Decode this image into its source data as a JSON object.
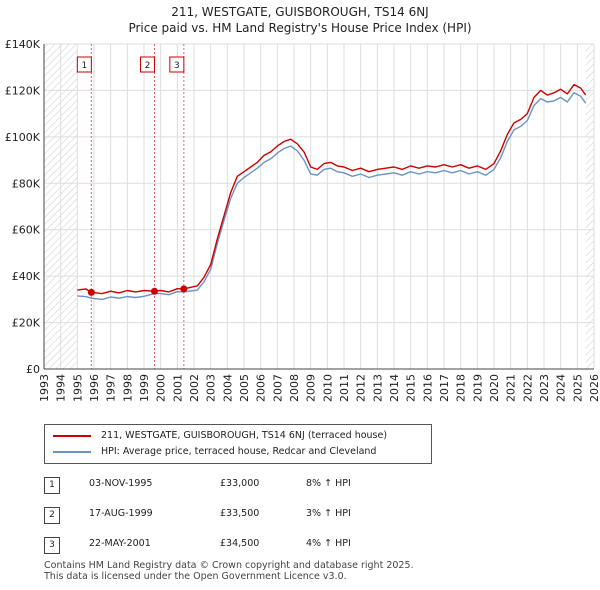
{
  "title_line1": "211, WESTGATE, GUISBOROUGH, TS14 6NJ",
  "title_line2": "Price paid vs. HM Land Registry's House Price Index (HPI)",
  "chart_data": {
    "type": "line",
    "title": "211, WESTGATE, GUISBOROUGH, TS14 6NJ — Price paid vs. HM Land Registry's House Price Index (HPI)",
    "xlabel": "",
    "ylabel": "",
    "xlim": [
      1993,
      2026
    ],
    "ylim": [
      0,
      140000
    ],
    "x_ticks": [
      1993,
      1994,
      1995,
      1996,
      1997,
      1998,
      1999,
      2000,
      2001,
      2002,
      2003,
      2004,
      2005,
      2006,
      2007,
      2008,
      2009,
      2010,
      2011,
      2012,
      2013,
      2014,
      2015,
      2016,
      2017,
      2018,
      2019,
      2020,
      2021,
      2022,
      2023,
      2024,
      2025,
      2026
    ],
    "y_ticks": [
      0,
      20000,
      40000,
      60000,
      80000,
      100000,
      120000,
      140000
    ],
    "y_tick_labels": [
      "£0",
      "£20K",
      "£40K",
      "£60K",
      "£80K",
      "£100K",
      "£120K",
      "£140K"
    ],
    "grid": true,
    "data_range_start": 1995.0,
    "data_range_end": 2025.5,
    "series": [
      {
        "name": "211, WESTGATE, GUISBOROUGH, TS14 6NJ (terraced house)",
        "color": "#cc0000",
        "x": [
          1995.0,
          1995.5,
          1995.84,
          1996.5,
          1997,
          1997.5,
          1998,
          1998.5,
          1999,
          1999.63,
          2000,
          2000.5,
          2001,
          2001.39,
          2001.8,
          2002.2,
          2002.6,
          2003,
          2003.4,
          2003.8,
          2004.2,
          2004.6,
          2005,
          2005.4,
          2005.8,
          2006.2,
          2006.6,
          2007,
          2007.4,
          2007.8,
          2008.2,
          2008.6,
          2009,
          2009.4,
          2009.8,
          2010.2,
          2010.6,
          2011,
          2011.5,
          2012,
          2012.5,
          2013,
          2013.5,
          2014,
          2014.5,
          2015,
          2015.5,
          2016,
          2016.5,
          2017,
          2017.5,
          2018,
          2018.5,
          2019,
          2019.5,
          2020,
          2020.4,
          2020.8,
          2021.2,
          2021.6,
          2022,
          2022.4,
          2022.8,
          2023.2,
          2023.6,
          2024,
          2024.4,
          2024.8,
          2025.2,
          2025.5
        ],
        "values": [
          34000,
          34500,
          33000,
          32500,
          33500,
          32800,
          33800,
          33200,
          33800,
          33500,
          33800,
          33200,
          34600,
          34500,
          35200,
          35800,
          39500,
          45000,
          56000,
          66000,
          76000,
          83000,
          85000,
          87000,
          89000,
          92000,
          93500,
          96000,
          98000,
          99000,
          97000,
          93500,
          87000,
          86000,
          88500,
          89000,
          87500,
          87000,
          85500,
          86500,
          85000,
          86000,
          86500,
          87000,
          86000,
          87500,
          86500,
          87500,
          87000,
          88000,
          87000,
          88000,
          86500,
          87500,
          86000,
          88500,
          94000,
          101000,
          106000,
          107500,
          110000,
          117000,
          120000,
          118000,
          119000,
          120500,
          118500,
          122500,
          121000,
          118000
        ]
      },
      {
        "name": "HPI: Average price, terraced house, Redcar and Cleveland",
        "color": "#6b93c4",
        "x": [
          1995.0,
          1995.5,
          1995.84,
          1996.5,
          1997,
          1997.5,
          1998,
          1998.5,
          1999,
          1999.63,
          2000,
          2000.5,
          2001,
          2001.39,
          2001.8,
          2002.2,
          2002.6,
          2003,
          2003.4,
          2003.8,
          2004.2,
          2004.6,
          2005,
          2005.4,
          2005.8,
          2006.2,
          2006.6,
          2007,
          2007.4,
          2007.8,
          2008.2,
          2008.6,
          2009,
          2009.4,
          2009.8,
          2010.2,
          2010.6,
          2011,
          2011.5,
          2012,
          2012.5,
          2013,
          2013.5,
          2014,
          2014.5,
          2015,
          2015.5,
          2016,
          2016.5,
          2017,
          2017.5,
          2018,
          2018.5,
          2019,
          2019.5,
          2020,
          2020.4,
          2020.8,
          2021.2,
          2021.6,
          2022,
          2022.4,
          2022.8,
          2023.2,
          2023.6,
          2024,
          2024.4,
          2024.8,
          2025.2,
          2025.5
        ],
        "values": [
          31500,
          31200,
          30500,
          30000,
          31000,
          30500,
          31200,
          30800,
          31300,
          32500,
          32500,
          32000,
          33300,
          33200,
          33600,
          34000,
          37500,
          43000,
          54000,
          64000,
          73500,
          80000,
          82500,
          84500,
          86500,
          89000,
          90500,
          93000,
          95000,
          96000,
          94000,
          90000,
          84000,
          83500,
          86000,
          86500,
          85000,
          84500,
          83000,
          84000,
          82500,
          83500,
          84000,
          84500,
          83500,
          85000,
          84000,
          85000,
          84500,
          85500,
          84500,
          85500,
          84000,
          85000,
          83500,
          86000,
          91000,
          98000,
          103000,
          104500,
          107000,
          113500,
          116500,
          115000,
          115500,
          117000,
          115000,
          119000,
          117500,
          114500
        ]
      }
    ],
    "sales": [
      {
        "label": "1",
        "x": 1995.84,
        "value": 33000,
        "date": "03-NOV-1995",
        "price": "£33,000",
        "hpi": "8% ↑ HPI"
      },
      {
        "label": "2",
        "x": 1999.63,
        "value": 33500,
        "date": "17-AUG-1999",
        "price": "£33,500",
        "hpi": "3% ↑ HPI"
      },
      {
        "label": "3",
        "x": 2001.39,
        "value": 34500,
        "date": "22-MAY-2001",
        "price": "£34,500",
        "hpi": "4% ↑ HPI"
      }
    ]
  },
  "legend": {
    "property_label": "211, WESTGATE, GUISBOROUGH, TS14 6NJ (terraced house)",
    "hpi_label": "HPI: Average price, terraced house, Redcar and Cleveland"
  },
  "sales_table": [
    {
      "num": "1",
      "date": "03-NOV-1995",
      "price": "£33,000",
      "hpi": "8% ↑ HPI"
    },
    {
      "num": "2",
      "date": "17-AUG-1999",
      "price": "£33,500",
      "hpi": "3% ↑ HPI"
    },
    {
      "num": "3",
      "date": "22-MAY-2001",
      "price": "£34,500",
      "hpi": "4% ↑ HPI"
    }
  ],
  "footer": {
    "line1": "Contains HM Land Registry data © Crown copyright and database right 2025.",
    "line2": "This data is licensed under the Open Government Licence v3.0."
  },
  "colors": {
    "property_line": "#cc0000",
    "hpi_line": "#6b93c4",
    "grid": "#dddddd",
    "hatch": "#cccccc"
  }
}
